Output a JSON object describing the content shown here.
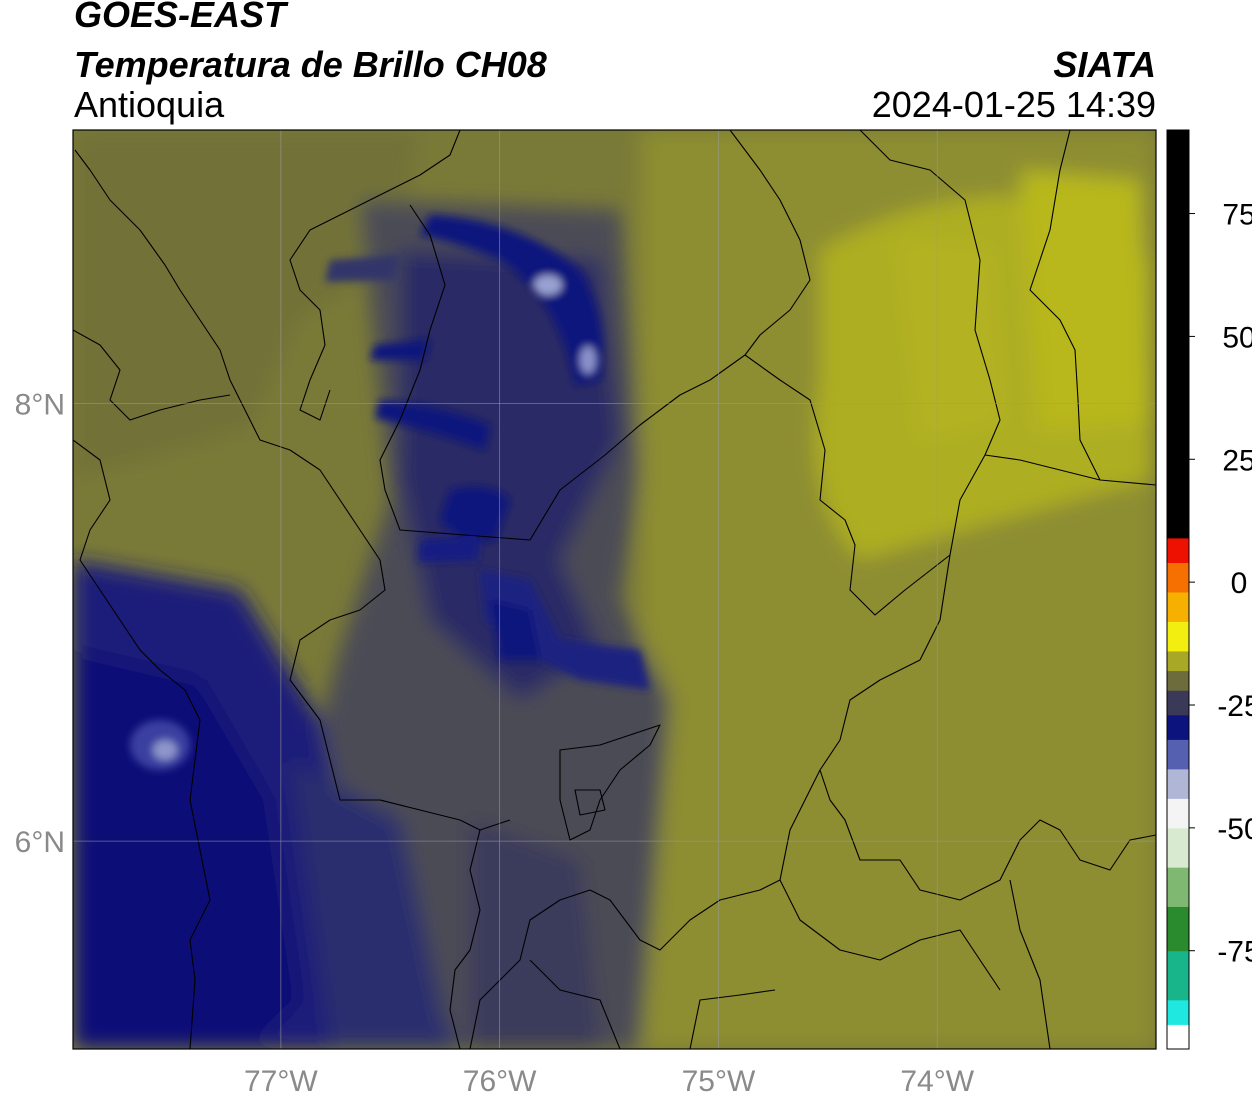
{
  "header": {
    "satellite": "GOES-EAST",
    "product": "Temperatura de Brillo CH08",
    "region": "Antioquia",
    "agency": "SIATA",
    "datetime": "2024-01-25 14:39"
  },
  "map": {
    "lon_range": [
      -77.95,
      -73.0
    ],
    "lat_range": [
      5.05,
      9.25
    ],
    "lon_ticks": [
      {
        "value": -77,
        "label": "77°W"
      },
      {
        "value": -76,
        "label": "76°W"
      },
      {
        "value": -75,
        "label": "75°W"
      },
      {
        "value": -74,
        "label": "74°W"
      }
    ],
    "lat_ticks": [
      {
        "value": 8,
        "label": "8°N"
      },
      {
        "value": 6,
        "label": "6°N"
      }
    ],
    "grid": true
  },
  "colorbar": {
    "range": [
      -95,
      92
    ],
    "ticks": [
      {
        "value": 75,
        "label": "75"
      },
      {
        "value": 50,
        "label": "50"
      },
      {
        "value": 25,
        "label": "25"
      },
      {
        "value": 0,
        "label": "0"
      },
      {
        "value": -25,
        "label": "-25"
      },
      {
        "value": -50,
        "label": "-50"
      },
      {
        "value": -75,
        "label": "-75"
      }
    ],
    "segments": [
      {
        "from": -95,
        "to": -90,
        "color": "#ffffff"
      },
      {
        "from": -90,
        "to": -85,
        "color": "#1ee8e0"
      },
      {
        "from": -85,
        "to": -75,
        "color": "#19b58a"
      },
      {
        "from": -75,
        "to": -66,
        "color": "#2a8a2e"
      },
      {
        "from": -66,
        "to": -58,
        "color": "#7fb870"
      },
      {
        "from": -58,
        "to": -50,
        "color": "#d8ead0"
      },
      {
        "from": -50,
        "to": -44,
        "color": "#f4f4f4"
      },
      {
        "from": -44,
        "to": -38,
        "color": "#b0b6d6"
      },
      {
        "from": -38,
        "to": -32,
        "color": "#5560b0"
      },
      {
        "from": -32,
        "to": -27,
        "color": "#0d137d"
      },
      {
        "from": -27,
        "to": -22,
        "color": "#3a3a58"
      },
      {
        "from": -22,
        "to": -18,
        "color": "#6c6c3c"
      },
      {
        "from": -18,
        "to": -14,
        "color": "#a8a826"
      },
      {
        "from": -14,
        "to": -8,
        "color": "#f2ee10"
      },
      {
        "from": -8,
        "to": -2,
        "color": "#f6b000"
      },
      {
        "from": -2,
        "to": 4,
        "color": "#f57000"
      },
      {
        "from": 4,
        "to": 9,
        "color": "#ee1000"
      },
      {
        "from": 9,
        "to": 92,
        "color": "#000000"
      }
    ]
  }
}
